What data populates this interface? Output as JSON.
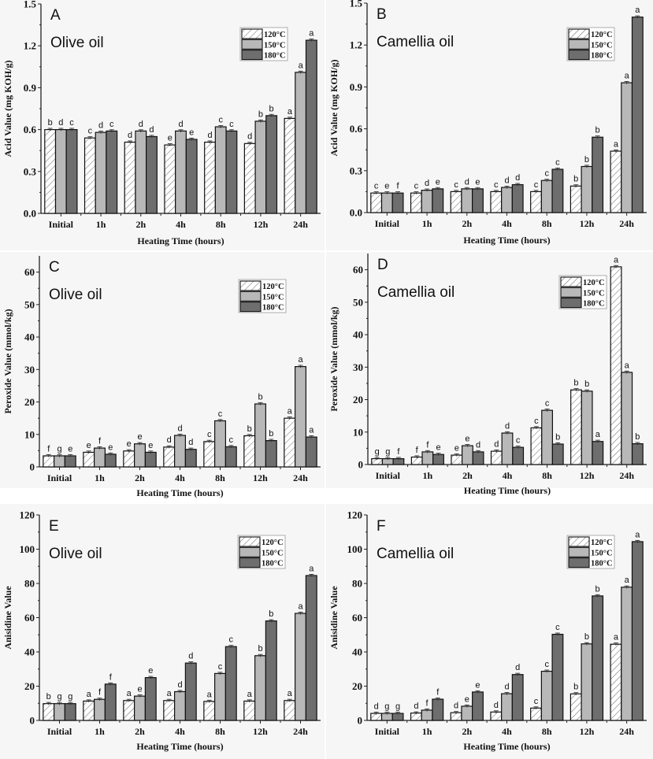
{
  "figure": {
    "legend": {
      "entries": [
        {
          "label": "120°C",
          "style": "hatched",
          "color": "#ffffff"
        },
        {
          "label": "150°C",
          "style": "solid",
          "color": "#b8b8b8"
        },
        {
          "label": "180°C",
          "style": "solid",
          "color": "#6e6e6e"
        }
      ]
    }
  },
  "chart_data": [
    {
      "type": "bar",
      "panel": "A",
      "title": "Olive oil",
      "xlabel": "Heating Time (hours)",
      "ylabel": "Acid Value (mg KOH/g)",
      "ylim": [
        0,
        1.5
      ],
      "yticks": [
        "0.0",
        "0.3",
        "0.6",
        "0.9",
        "1.2",
        "1.5"
      ],
      "ytick_values": [
        0,
        0.3,
        0.6,
        0.9,
        1.2,
        1.5
      ],
      "grid": false,
      "legend_position": "top-right",
      "categories": [
        "Initial",
        "1h",
        "2h",
        "4h",
        "8h",
        "12h",
        "24h"
      ],
      "series": [
        {
          "name": "120°C",
          "values": [
            0.6,
            0.54,
            0.51,
            0.49,
            0.51,
            0.5,
            0.68
          ],
          "letters": [
            "b",
            "c",
            "d",
            "e",
            "d",
            "d",
            "a"
          ]
        },
        {
          "name": "150°C",
          "values": [
            0.6,
            0.58,
            0.59,
            0.59,
            0.62,
            0.66,
            1.01
          ],
          "letters": [
            "d",
            "d",
            "d",
            "d",
            "c",
            "b",
            "a"
          ]
        },
        {
          "name": "180°C",
          "values": [
            0.6,
            0.59,
            0.55,
            0.53,
            0.59,
            0.7,
            1.24
          ],
          "letters": [
            "c",
            "c",
            "d",
            "e",
            "c",
            "b",
            "a"
          ]
        }
      ]
    },
    {
      "type": "bar",
      "panel": "B",
      "title": "Camellia oil",
      "xlabel": "Heating Time (hours)",
      "ylabel": "Acid Value (mg KOH/g)",
      "ylim": [
        0,
        1.5
      ],
      "yticks": [
        "0.0",
        "0.3",
        "0.6",
        "0.9",
        "1.2",
        "1.5"
      ],
      "ytick_values": [
        0,
        0.3,
        0.6,
        0.9,
        1.2,
        1.5
      ],
      "grid": false,
      "legend_position": "top-right",
      "categories": [
        "Initial",
        "1h",
        "2h",
        "4h",
        "8h",
        "12h",
        "24h"
      ],
      "series": [
        {
          "name": "120°C",
          "values": [
            0.14,
            0.14,
            0.15,
            0.15,
            0.15,
            0.19,
            0.44
          ],
          "letters": [
            "c",
            "c",
            "c",
            "c",
            "c",
            "b",
            "a"
          ]
        },
        {
          "name": "150°C",
          "values": [
            0.14,
            0.16,
            0.17,
            0.18,
            0.23,
            0.33,
            0.93
          ],
          "letters": [
            "e",
            "d",
            "d",
            "d",
            "c",
            "b",
            "a"
          ]
        },
        {
          "name": "180°C",
          "values": [
            0.14,
            0.17,
            0.17,
            0.2,
            0.31,
            0.54,
            1.4
          ],
          "letters": [
            "f",
            "e",
            "e",
            "d",
            "c",
            "b",
            "a"
          ]
        }
      ]
    },
    {
      "type": "bar",
      "panel": "C",
      "title": "Olive oil",
      "xlabel": "Heating Time (hours)",
      "ylabel": "Peroxide Value (mmol/kg)",
      "ylim": [
        0,
        65
      ],
      "yticks": [
        "0",
        "10",
        "20",
        "30",
        "40",
        "50",
        "60"
      ],
      "ytick_values": [
        0,
        10,
        20,
        30,
        40,
        50,
        60
      ],
      "grid": false,
      "legend_position": "top-right",
      "categories": [
        "Initial",
        "1h",
        "2h",
        "4h",
        "8h",
        "12h",
        "24h"
      ],
      "series": [
        {
          "name": "120°C",
          "values": [
            3.4,
            4.5,
            4.9,
            6.1,
            7.8,
            9.6,
            15.0
          ],
          "letters": [
            "f",
            "e",
            "e",
            "d",
            "c",
            "b",
            "a"
          ]
        },
        {
          "name": "150°C",
          "values": [
            3.4,
            5.8,
            7.1,
            9.7,
            14.2,
            19.4,
            30.9
          ],
          "letters": [
            "g",
            "f",
            "e",
            "d",
            "c",
            "b",
            "a"
          ]
        },
        {
          "name": "180°C",
          "values": [
            3.4,
            3.9,
            4.5,
            5.4,
            6.2,
            8.1,
            9.2
          ],
          "letters": [
            "e",
            "e",
            "e",
            "d",
            "c",
            "b",
            "a"
          ]
        }
      ]
    },
    {
      "type": "bar",
      "panel": "D",
      "title": "Camellia oil",
      "xlabel": "Heating Time (hours)",
      "ylabel": "Peroxide Value (mmol/kg)",
      "ylim": [
        0,
        65
      ],
      "yticks": [
        "0",
        "10",
        "20",
        "30",
        "40",
        "50",
        "60"
      ],
      "ytick_values": [
        0,
        10,
        20,
        30,
        40,
        50,
        60
      ],
      "grid": false,
      "legend_position": "top-right",
      "categories": [
        "Initial",
        "1h",
        "2h",
        "4h",
        "8h",
        "12h",
        "24h"
      ],
      "series": [
        {
          "name": "120°C",
          "values": [
            1.8,
            2.3,
            2.9,
            4.1,
            11.3,
            23.0,
            60.9
          ],
          "letters": [
            "g",
            "f",
            "e",
            "d",
            "c",
            "b",
            "a"
          ]
        },
        {
          "name": "150°C",
          "values": [
            1.8,
            3.9,
            5.8,
            9.7,
            16.7,
            22.6,
            28.4
          ],
          "letters": [
            "g",
            "f",
            "e",
            "d",
            "c",
            "b",
            "a"
          ]
        },
        {
          "name": "180°C",
          "values": [
            1.8,
            3.1,
            3.9,
            5.3,
            6.3,
            7.1,
            6.4
          ],
          "letters": [
            "f",
            "e",
            "d",
            "c",
            "b",
            "a",
            "b"
          ]
        }
      ]
    },
    {
      "type": "bar",
      "panel": "E",
      "title": "Olive oil",
      "xlabel": "Heating Time (hours)",
      "ylabel": "Anisidine Value",
      "ylim": [
        0,
        120
      ],
      "yticks": [
        "0",
        "20",
        "40",
        "60",
        "80",
        "100",
        "120"
      ],
      "ytick_values": [
        0,
        20,
        40,
        60,
        80,
        100,
        120
      ],
      "grid": false,
      "legend_position": "top-right",
      "categories": [
        "Initial",
        "1h",
        "2h",
        "4h",
        "8h",
        "12h",
        "24h"
      ],
      "series": [
        {
          "name": "120°C",
          "values": [
            9.8,
            11.3,
            11.6,
            11.6,
            11.1,
            11.3,
            11.6
          ],
          "letters": [
            "b",
            "a",
            "a",
            "a",
            "a",
            "a",
            "a"
          ]
        },
        {
          "name": "150°C",
          "values": [
            9.8,
            12.3,
            14.2,
            16.8,
            27.4,
            37.8,
            62.5
          ],
          "letters": [
            "g",
            "f",
            "e",
            "d",
            "c",
            "b",
            "a"
          ]
        },
        {
          "name": "180°C",
          "values": [
            9.8,
            21.2,
            25.0,
            33.5,
            43.1,
            58.1,
            84.6
          ],
          "letters": [
            "g",
            "f",
            "e",
            "d",
            "c",
            "b",
            "a"
          ]
        }
      ]
    },
    {
      "type": "bar",
      "panel": "F",
      "title": "Camellia oil",
      "xlabel": "Heating Time (hours)",
      "ylabel": "Anisidine Value",
      "ylim": [
        0,
        120
      ],
      "yticks": [
        "0",
        "20",
        "40",
        "60",
        "80",
        "100",
        "120"
      ],
      "ytick_values": [
        0,
        20,
        40,
        60,
        80,
        100,
        120
      ],
      "grid": false,
      "legend_position": "top-right",
      "categories": [
        "Initial",
        "1h",
        "2h",
        "4h",
        "8h",
        "12h",
        "24h"
      ],
      "series": [
        {
          "name": "120°C",
          "values": [
            4.1,
            4.3,
            4.5,
            4.9,
            7.2,
            15.5,
            44.5
          ],
          "letters": [
            "d",
            "d",
            "d",
            "d",
            "c",
            "b",
            "a"
          ]
        },
        {
          "name": "150°C",
          "values": [
            4.1,
            6.0,
            8.3,
            15.6,
            28.7,
            44.7,
            77.8
          ],
          "letters": [
            "g",
            "f",
            "e",
            "d",
            "c",
            "b",
            "a"
          ]
        },
        {
          "name": "180°C",
          "values": [
            4.1,
            12.4,
            16.6,
            26.8,
            50.3,
            72.7,
            104.4
          ],
          "letters": [
            "g",
            "f",
            "e",
            "d",
            "c",
            "b",
            "a"
          ]
        }
      ]
    }
  ]
}
